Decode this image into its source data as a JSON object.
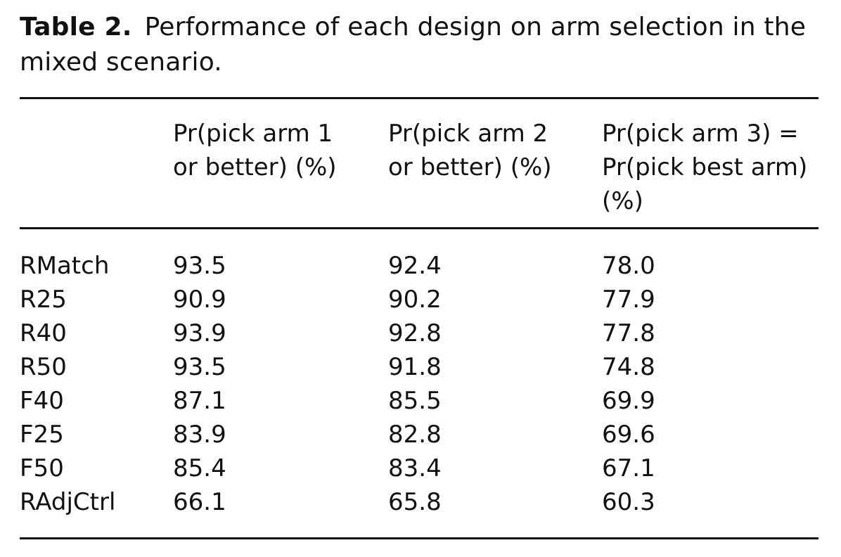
{
  "caption": {
    "label": "Table 2.",
    "text": "Performance of each design on arm selection in the mixed scenario."
  },
  "table": {
    "columns": [
      "",
      "Pr(pick arm 1 or better) (%)",
      "Pr(pick arm 2 or better) (%)",
      "Pr(pick arm 3) = Pr(pick best arm) (%)"
    ],
    "rows": [
      {
        "design": "RMatch",
        "arm1": "93.5",
        "arm2": "92.4",
        "arm3": "78.0"
      },
      {
        "design": "R25",
        "arm1": "90.9",
        "arm2": "90.2",
        "arm3": "77.9"
      },
      {
        "design": "R40",
        "arm1": "93.9",
        "arm2": "92.8",
        "arm3": "77.8"
      },
      {
        "design": "R50",
        "arm1": "93.5",
        "arm2": "91.8",
        "arm3": "74.8"
      },
      {
        "design": "F40",
        "arm1": "87.1",
        "arm2": "85.5",
        "arm3": "69.9"
      },
      {
        "design": "F25",
        "arm1": "83.9",
        "arm2": "82.8",
        "arm3": "69.6"
      },
      {
        "design": "F50",
        "arm1": "85.4",
        "arm2": "83.4",
        "arm3": "67.1"
      },
      {
        "design": "RAdjCtrl",
        "arm1": "66.1",
        "arm2": "65.8",
        "arm3": "60.3"
      }
    ]
  }
}
